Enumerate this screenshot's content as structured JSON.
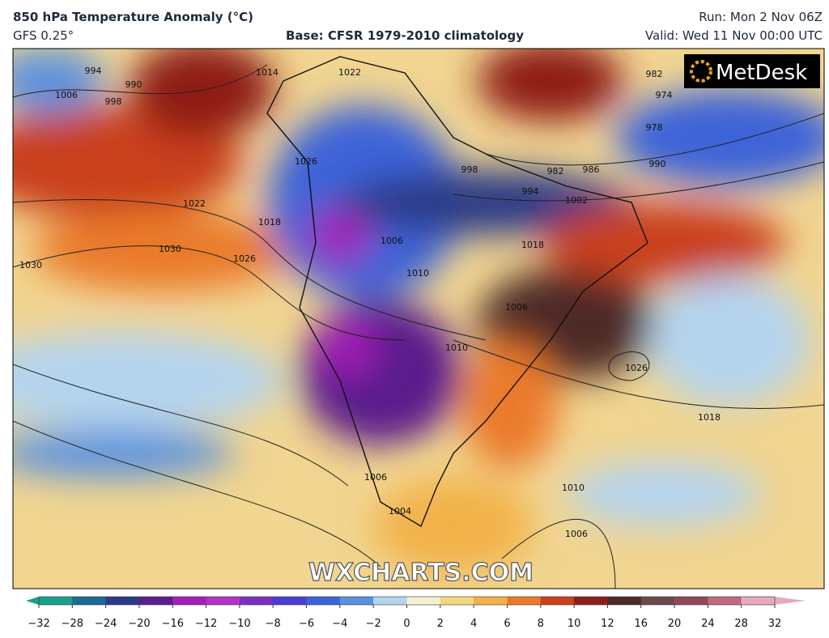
{
  "header": {
    "title": "850 hPa Temperature Anomaly (°C)",
    "model": "GFS 0.25°",
    "base": "Base: CFSR 1979-2010 climatology",
    "run": "Run: Mon 2 Nov 06Z",
    "valid": "Valid: Wed 11 Nov 00:00 UTC"
  },
  "map": {
    "logo": "MetDesk",
    "watermark": "WXCHARTS.COM",
    "isobar_labels": [
      994,
      990,
      1006,
      998,
      1014,
      1022,
      982,
      974,
      978,
      986,
      990,
      982,
      998,
      994,
      1002,
      1026,
      1022,
      1018,
      1030,
      1030,
      1026,
      1006,
      1010,
      1018,
      1006,
      1010,
      1026,
      1018,
      1006,
      1004,
      1010,
      1006
    ]
  },
  "colorbar": {
    "ticks": [
      {
        "value": -32,
        "label": "−32"
      },
      {
        "value": -28,
        "label": "−28"
      },
      {
        "value": -24,
        "label": "−24"
      },
      {
        "value": -20,
        "label": "−20"
      },
      {
        "value": -16,
        "label": "−16"
      },
      {
        "value": -12,
        "label": "−12"
      },
      {
        "value": -10,
        "label": "−10"
      },
      {
        "value": -8,
        "label": "−8"
      },
      {
        "value": -6,
        "label": "−6"
      },
      {
        "value": -4,
        "label": "−4"
      },
      {
        "value": -2,
        "label": "−2"
      },
      0,
      2,
      4,
      6,
      8,
      10,
      12,
      16,
      20,
      24,
      28,
      32
    ],
    "colors": [
      "#1aa088",
      "#1f6a95",
      "#2b3a86",
      "#5a1e8c",
      "#a41fb8",
      "#b334c4",
      "#7b2fc0",
      "#4a3ed0",
      "#3d63d8",
      "#5a92de",
      "#b4d4ee",
      "#f4f0d0",
      "#f3d77e",
      "#f2b24a",
      "#ea7a2a",
      "#c9401d",
      "#8e1f18",
      "#4e2a26",
      "#6a4a48",
      "#8e4a55",
      "#c06a82",
      "#e7a8c0"
    ]
  }
}
